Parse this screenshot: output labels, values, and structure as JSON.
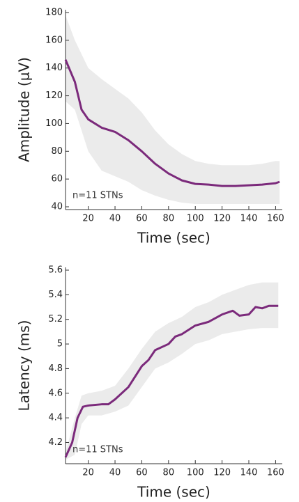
{
  "chart_data": [
    {
      "type": "line",
      "ylabel": "Amplitude (µV)",
      "xlabel": "Time (sec)",
      "annotation": "n=11 STNs",
      "xlim": [
        3,
        165
      ],
      "ylim": [
        40,
        180
      ],
      "xticks": [
        20,
        40,
        60,
        80,
        100,
        120,
        140,
        160
      ],
      "yticks": [
        40,
        60,
        80,
        100,
        120,
        140,
        160,
        180
      ],
      "color": "#7b2a7b",
      "band_color": "#ebebeb",
      "x": [
        3,
        10,
        15,
        20,
        30,
        40,
        50,
        60,
        70,
        80,
        90,
        100,
        110,
        120,
        130,
        140,
        150,
        160,
        163
      ],
      "values": [
        146,
        130,
        110,
        103,
        97,
        94,
        88,
        80,
        71,
        64,
        59,
        56.5,
        56,
        55,
        55,
        55.5,
        56,
        57,
        58
      ],
      "band": {
        "x": [
          3,
          10,
          20,
          30,
          40,
          50,
          60,
          70,
          80,
          90,
          100,
          110,
          120,
          130,
          140,
          150,
          160,
          163
        ],
        "upper": [
          178,
          160,
          140,
          132,
          125,
          118,
          108,
          95,
          85,
          78,
          73,
          71,
          70,
          70,
          70,
          71,
          73,
          73
        ],
        "lower": [
          116,
          110,
          80,
          66,
          62,
          58,
          52,
          48,
          45,
          43,
          42,
          42,
          42,
          42,
          42,
          42,
          42,
          42
        ]
      }
    },
    {
      "type": "line",
      "ylabel": "Latency (ms)",
      "xlabel": "Time (sec)",
      "annotation": "n=11 STNs",
      "xlim": [
        3,
        165
      ],
      "ylim": [
        4.05,
        5.6
      ],
      "xticks": [
        20,
        40,
        60,
        80,
        100,
        120,
        140,
        160
      ],
      "yticks": [
        4.2,
        4.4,
        4.6,
        4.8,
        5,
        5.2,
        5.4,
        5.6
      ],
      "color": "#7b2a7b",
      "band_color": "#ebebeb",
      "x": [
        3,
        8,
        12,
        16,
        20,
        30,
        35,
        40,
        50,
        60,
        65,
        70,
        80,
        85,
        90,
        100,
        110,
        120,
        128,
        133,
        140,
        145,
        150,
        155,
        162
      ],
      "values": [
        4.08,
        4.2,
        4.4,
        4.49,
        4.5,
        4.51,
        4.51,
        4.55,
        4.65,
        4.82,
        4.87,
        4.95,
        5.0,
        5.06,
        5.08,
        5.15,
        5.18,
        5.24,
        5.27,
        5.23,
        5.24,
        5.3,
        5.29,
        5.31,
        5.31
      ],
      "band": {
        "x": [
          3,
          10,
          15,
          20,
          30,
          40,
          50,
          60,
          70,
          80,
          90,
          100,
          110,
          120,
          130,
          140,
          150,
          162
        ],
        "upper": [
          4.12,
          4.4,
          4.58,
          4.6,
          4.62,
          4.66,
          4.8,
          4.96,
          5.1,
          5.17,
          5.22,
          5.3,
          5.34,
          5.4,
          5.44,
          5.48,
          5.5,
          5.5
        ],
        "lower": [
          4.06,
          4.1,
          4.35,
          4.42,
          4.42,
          4.45,
          4.5,
          4.65,
          4.8,
          4.85,
          4.92,
          5.0,
          5.03,
          5.08,
          5.1,
          5.12,
          5.13,
          5.13
        ]
      }
    }
  ]
}
